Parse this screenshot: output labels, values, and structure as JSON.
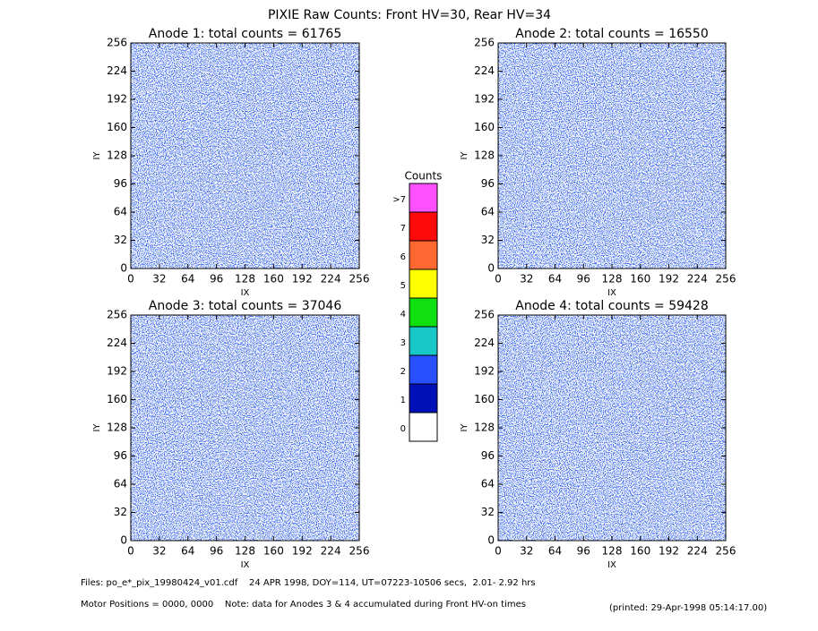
{
  "title": "PIXIE Raw Counts:  Front HV=30, Rear HV=34",
  "chart_data": [
    {
      "type": "heatmap",
      "title": "Anode 1: total counts = 61765",
      "xlabel": "IX",
      "ylabel": "IY",
      "xlim": [
        0,
        256
      ],
      "ylim": [
        0,
        256
      ],
      "xticks": [
        0,
        32,
        64,
        96,
        128,
        160,
        192,
        224,
        256
      ],
      "yticks": [
        0,
        32,
        64,
        96,
        128,
        160,
        192,
        224,
        256
      ]
    },
    {
      "type": "heatmap",
      "title": "Anode 2: total counts = 16550",
      "xlabel": "IX",
      "ylabel": "IY",
      "xlim": [
        0,
        256
      ],
      "ylim": [
        0,
        256
      ],
      "xticks": [
        0,
        32,
        64,
        96,
        128,
        160,
        192,
        224,
        256
      ],
      "yticks": [
        0,
        32,
        64,
        96,
        128,
        160,
        192,
        224,
        256
      ]
    },
    {
      "type": "heatmap",
      "title": "Anode 3: total counts = 37046",
      "xlabel": "IX",
      "ylabel": "IY",
      "xlim": [
        0,
        256
      ],
      "ylim": [
        0,
        256
      ],
      "xticks": [
        0,
        32,
        64,
        96,
        128,
        160,
        192,
        224,
        256
      ],
      "yticks": [
        0,
        32,
        64,
        96,
        128,
        160,
        192,
        224,
        256
      ]
    },
    {
      "type": "heatmap",
      "title": "Anode 4: total counts = 59428",
      "xlabel": "IX",
      "ylabel": "IY",
      "xlim": [
        0,
        256
      ],
      "ylim": [
        0,
        256
      ],
      "xticks": [
        0,
        32,
        64,
        96,
        128,
        160,
        192,
        224,
        256
      ],
      "yticks": [
        0,
        32,
        64,
        96,
        128,
        160,
        192,
        224,
        256
      ]
    }
  ],
  "colorbar": {
    "title": "Counts",
    "levels": [
      0,
      1,
      2,
      3,
      4,
      5,
      6,
      7
    ],
    "over_label": ">7",
    "colors": [
      "#ffffff",
      "#0010b8",
      "#2850ff",
      "#18c8c8",
      "#10e010",
      "#ffff00",
      "#ff6830",
      "#ff0a0a",
      "#ff50ff"
    ]
  },
  "footer": {
    "files": "Files: po_e*_pix_19980424_v01.cdf    24 APR 1998, DOY=114, UT=07223-10506 secs,  2.01- 2.92 hrs",
    "motor": "Motor Positions = 0000, 0000    Note: data for Anodes 3 & 4 accumulated during Front HV-on times",
    "printed": "(printed: 29-Apr-1998 05:14:17.00)"
  }
}
